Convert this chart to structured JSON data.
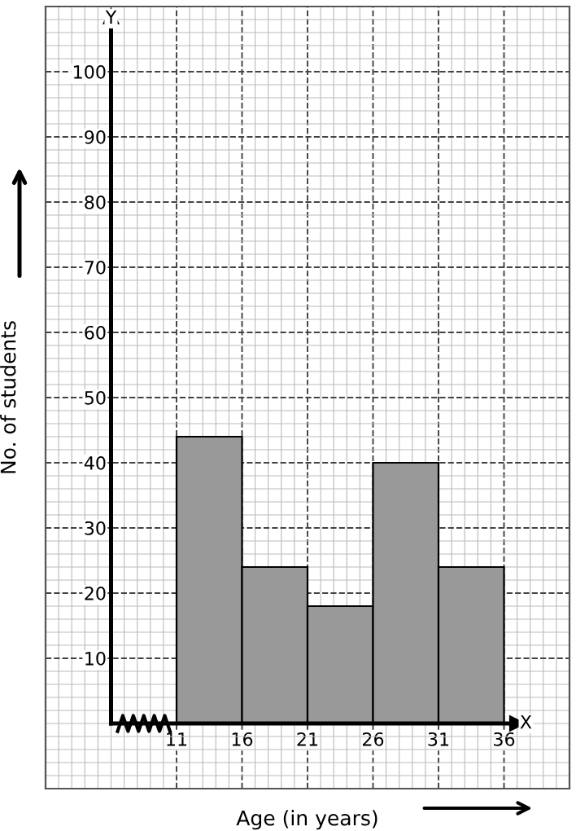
{
  "chart_data": {
    "type": "histogram",
    "xlabel": "Age (in years)",
    "ylabel": "No. of students",
    "bins": [
      11,
      16,
      21,
      26,
      31,
      36
    ],
    "values": [
      44,
      24,
      18,
      40,
      24
    ],
    "color": "#999999",
    "xlim": [
      1,
      41
    ],
    "ylim": [
      -10,
      110
    ],
    "xticks": [
      11,
      16,
      21,
      26,
      31,
      36
    ],
    "yticks": [
      10,
      20,
      30,
      40,
      50,
      60,
      70,
      80,
      90,
      100
    ],
    "grid": true,
    "ref_lines": [
      {
        "axis": "x",
        "value": 6,
        "label": "Y"
      },
      {
        "axis": "y",
        "value": 0,
        "label": "X"
      }
    ]
  }
}
